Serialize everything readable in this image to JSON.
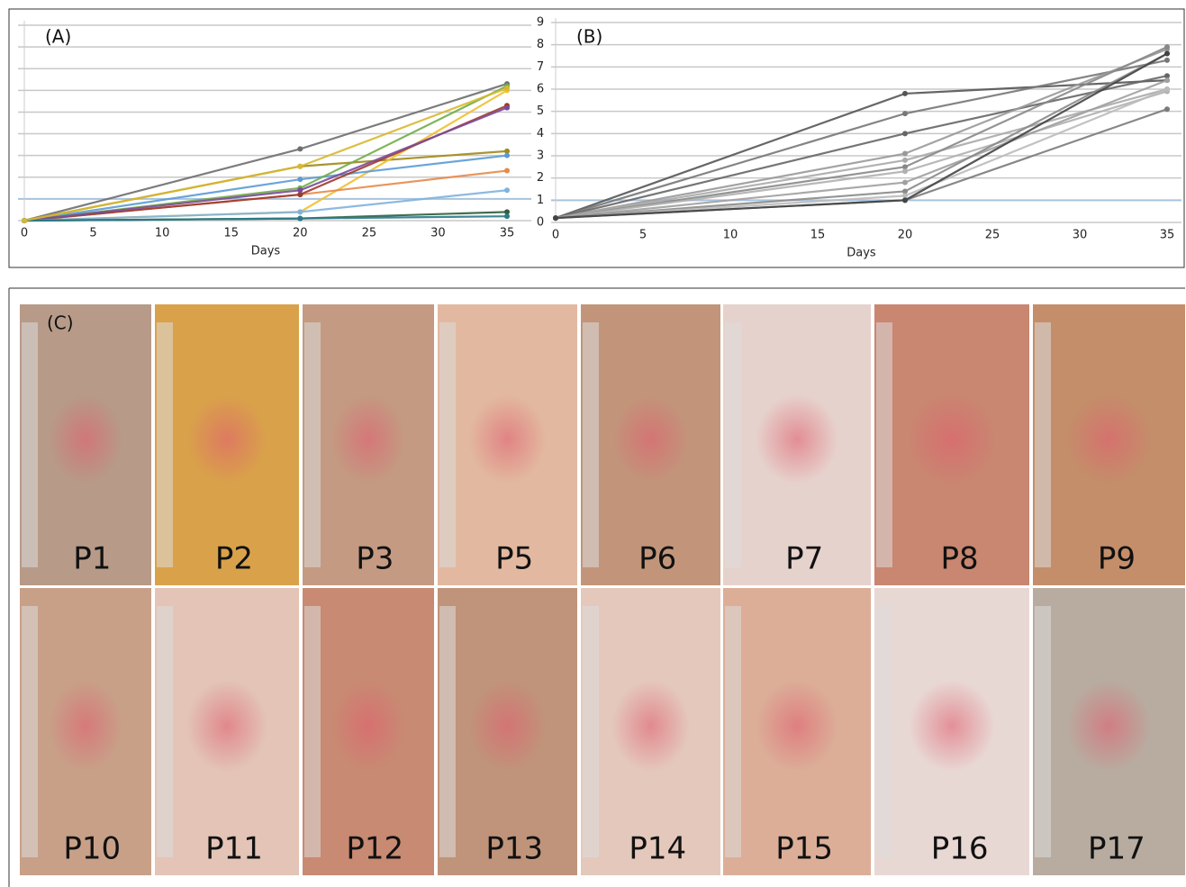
{
  "chart_data": [
    {
      "type": "line",
      "title": "(A)",
      "x_label": "Days",
      "x": [
        0,
        20,
        35
      ],
      "xlim": [
        0,
        35
      ],
      "xticks": [
        0,
        5,
        10,
        15,
        20,
        25,
        30,
        35
      ],
      "ylim": [
        0,
        9
      ],
      "yticks": [
        0,
        1,
        2,
        3,
        4,
        5,
        6,
        7,
        8,
        9
      ],
      "ytick_labels": false,
      "grid": true,
      "reference_line": 1,
      "series": [
        {
          "color": "#6e6e6e",
          "values": [
            0,
            3.3,
            6.3
          ]
        },
        {
          "color": "#a08a1a",
          "values": [
            0,
            2.5,
            3.2
          ]
        },
        {
          "color": "#f0c030",
          "values": [
            0,
            0.4,
            6.0
          ]
        },
        {
          "color": "#e58a4a",
          "values": [
            0,
            1.2,
            2.3
          ]
        },
        {
          "color": "#5b9bd5",
          "values": [
            0,
            1.9,
            3.0
          ]
        },
        {
          "color": "#9e3a2a",
          "values": [
            0,
            1.2,
            5.3
          ]
        },
        {
          "color": "#70ad47",
          "values": [
            0,
            1.5,
            6.2
          ]
        },
        {
          "color": "#7a4a9a",
          "values": [
            0,
            1.4,
            5.2
          ]
        },
        {
          "color": "#7fb3de",
          "values": [
            0,
            0.4,
            1.4
          ]
        },
        {
          "color": "#2e5e3e",
          "values": [
            0,
            0.1,
            0.4
          ]
        },
        {
          "color": "#2a7a8a",
          "values": [
            0,
            0.1,
            0.2
          ]
        },
        {
          "color": "#d8b830",
          "values": [
            0,
            2.5,
            6.1
          ]
        }
      ]
    },
    {
      "type": "line",
      "title": "(B)",
      "x_label": "Days",
      "x": [
        0,
        20,
        35
      ],
      "xlim": [
        0,
        35
      ],
      "xticks": [
        0,
        5,
        10,
        15,
        20,
        25,
        30,
        35
      ],
      "ylim": [
        0,
        9
      ],
      "yticks": [
        0,
        1,
        2,
        3,
        4,
        5,
        6,
        7,
        8,
        9
      ],
      "ytick_labels": true,
      "grid": true,
      "reference_line": 1,
      "series": [
        {
          "color": "#555555",
          "values": [
            0.2,
            5.8,
            6.4
          ]
        },
        {
          "color": "#777777",
          "values": [
            0.2,
            4.9,
            7.3
          ]
        },
        {
          "color": "#666666",
          "values": [
            0.2,
            4.0,
            6.6
          ]
        },
        {
          "color": "#999999",
          "values": [
            0.2,
            3.1,
            7.8
          ]
        },
        {
          "color": "#aaaaaa",
          "values": [
            0.2,
            2.8,
            6.0
          ]
        },
        {
          "color": "#888888",
          "values": [
            0.2,
            2.5,
            7.9
          ]
        },
        {
          "color": "#b0b0b0",
          "values": [
            0.2,
            2.3,
            5.9
          ]
        },
        {
          "color": "#a0a0a0",
          "values": [
            0.2,
            1.8,
            6.4
          ]
        },
        {
          "color": "#8a8a8a",
          "values": [
            0.2,
            1.4,
            7.6
          ]
        },
        {
          "color": "#bbbbbb",
          "values": [
            0.2,
            1.2,
            6.0
          ]
        },
        {
          "color": "#7a7a7a",
          "values": [
            0.2,
            1.0,
            5.1
          ]
        },
        {
          "color": "#444444",
          "values": [
            0.2,
            1.0,
            7.6
          ]
        }
      ]
    }
  ],
  "panel_c": {
    "label": "(C)",
    "photos": [
      "P1",
      "P2",
      "P3",
      "P5",
      "P6",
      "P7",
      "P8",
      "P9",
      "P10",
      "P11",
      "P12",
      "P13",
      "P14",
      "P15",
      "P16",
      "P17"
    ]
  }
}
